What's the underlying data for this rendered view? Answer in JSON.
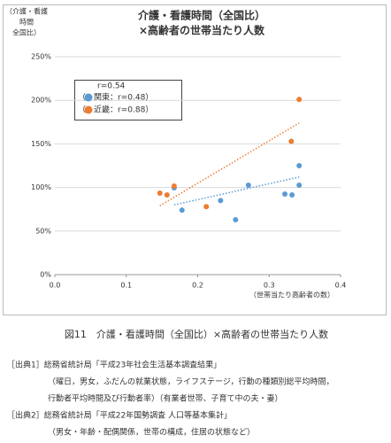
{
  "chart_data": {
    "type": "scatter",
    "title": [
      "介護・看護時間（全国比）",
      "×高齢者の世帯当たり人数"
    ],
    "ylabel": [
      "（介護・看護",
      "時間",
      "全国比）"
    ],
    "xlabel": "（世帯当たり高齢者の数）",
    "r_text": "r=0.54",
    "xlim": [
      0,
      0.4
    ],
    "xticks": [
      {
        "value": 0,
        "label": "0.0"
      },
      0.1,
      0.2,
      0.3,
      0.4
    ],
    "ylim": [
      0,
      250
    ],
    "yticks": [
      {
        "value": 0,
        "label": "0%"
      },
      {
        "value": 50,
        "label": "50%"
      },
      {
        "value": 100,
        "label": "100%"
      },
      {
        "value": 150,
        "label": "150%"
      },
      {
        "value": 200,
        "label": "200%"
      },
      {
        "value": 250,
        "label": "250%"
      }
    ],
    "grid": true,
    "series": [
      {
        "legend_prefix": "（",
        "name": "関東",
        "legend_suffix": "：r=0.48）",
        "color": "#5b9bd5",
        "x": [
          0.167,
          0.178,
          0.232,
          0.253,
          0.271,
          0.322,
          0.332,
          0.342,
          0.342
        ],
        "values": [
          99.6,
          74,
          85,
          63,
          102.6,
          92.5,
          91.5,
          125,
          102.6
        ],
        "trend_x": [
          0.167,
          0.342
        ],
        "trend_y": [
          80,
          112
        ]
      },
      {
        "legend_prefix": "（",
        "name": "近畿",
        "legend_suffix": "：r=0.88）",
        "color": "#ed7d31",
        "x": [
          0.147,
          0.157,
          0.167,
          0.212,
          0.331,
          0.342
        ],
        "values": [
          93.5,
          91.5,
          101.6,
          78,
          153,
          201
        ],
        "trend_x": [
          0.147,
          0.342
        ],
        "trend_y": [
          79,
          174
        ]
      }
    ]
  },
  "caption": "図11　介護・看護時間（全国比）×高齢者の世帯当たり人数",
  "sources": [
    "［出典1］総務省統計局「平成23年社会生活基本調査結果」",
    "（曜日，男女，ふだんの就業状態，ライフステージ，行動の種類別総平均時間，",
    "行動者平均時間及び行動者率）（有業者世帯、子育て中の夫・妻）",
    "［出典2］総務省統計局「平成22年国勢調査 人口等基本集計」",
    "（男女・年齢・配偶関係，世帯の構成，住居の状態など）"
  ]
}
